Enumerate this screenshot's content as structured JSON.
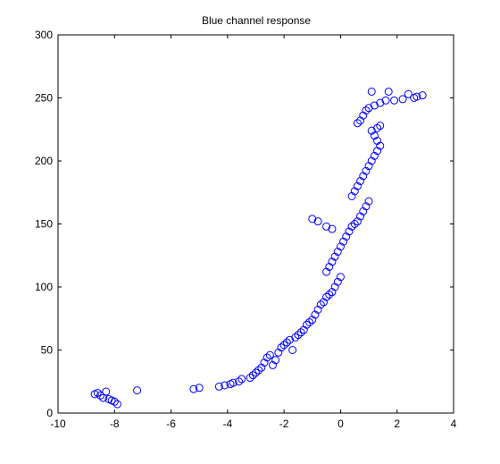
{
  "chart_data": {
    "type": "scatter",
    "title": "Blue channel response",
    "xlabel": "",
    "ylabel": "",
    "xlim": [
      -10,
      4
    ],
    "ylim": [
      0,
      300
    ],
    "x_ticks": [
      "-10",
      "-8",
      "-6",
      "-4",
      "-2",
      "0",
      "2",
      "4"
    ],
    "y_ticks": [
      "0",
      "50",
      "100",
      "150",
      "200",
      "250",
      "300"
    ],
    "grid": false,
    "legend": "none",
    "marker": "circle-open",
    "color": "#0000ff",
    "series": [
      {
        "points": [
          [
            -8.7,
            15
          ],
          [
            -8.6,
            16
          ],
          [
            -8.5,
            14
          ],
          [
            -8.4,
            12
          ],
          [
            -8.3,
            17
          ],
          [
            -8.2,
            11
          ],
          [
            -8.1,
            10
          ],
          [
            -8.0,
            9
          ],
          [
            -7.9,
            7
          ],
          [
            -7.2,
            18
          ],
          [
            -5.2,
            19
          ],
          [
            -5.0,
            20
          ],
          [
            -4.3,
            21
          ],
          [
            -4.1,
            22
          ],
          [
            -3.9,
            23
          ],
          [
            -3.8,
            24
          ],
          [
            -3.6,
            25
          ],
          [
            -3.5,
            27
          ],
          [
            -3.2,
            28
          ],
          [
            -3.1,
            30
          ],
          [
            -3.0,
            32
          ],
          [
            -2.9,
            34
          ],
          [
            -2.8,
            36
          ],
          [
            -2.7,
            40
          ],
          [
            -2.6,
            44
          ],
          [
            -2.5,
            46
          ],
          [
            -2.4,
            38
          ],
          [
            -2.3,
            42
          ],
          [
            -2.2,
            48
          ],
          [
            -2.1,
            52
          ],
          [
            -2.0,
            54
          ],
          [
            -1.9,
            56
          ],
          [
            -1.8,
            58
          ],
          [
            -1.7,
            50
          ],
          [
            -1.6,
            60
          ],
          [
            -1.5,
            62
          ],
          [
            -1.4,
            64
          ],
          [
            -1.3,
            66
          ],
          [
            -1.2,
            70
          ],
          [
            -1.1,
            72
          ],
          [
            -1.0,
            74
          ],
          [
            -0.9,
            78
          ],
          [
            -0.8,
            82
          ],
          [
            -0.7,
            86
          ],
          [
            -0.6,
            88
          ],
          [
            -0.5,
            92
          ],
          [
            -0.4,
            94
          ],
          [
            -0.3,
            96
          ],
          [
            -0.2,
            100
          ],
          [
            -0.1,
            104
          ],
          [
            0.0,
            108
          ],
          [
            -0.5,
            112
          ],
          [
            -0.4,
            116
          ],
          [
            -0.3,
            120
          ],
          [
            -0.2,
            124
          ],
          [
            -0.1,
            128
          ],
          [
            0.0,
            132
          ],
          [
            0.1,
            136
          ],
          [
            0.2,
            140
          ],
          [
            0.3,
            144
          ],
          [
            0.4,
            148
          ],
          [
            0.5,
            150
          ],
          [
            0.6,
            152
          ],
          [
            0.7,
            156
          ],
          [
            0.8,
            160
          ],
          [
            0.9,
            164
          ],
          [
            1.0,
            168
          ],
          [
            0.4,
            172
          ],
          [
            0.5,
            176
          ],
          [
            0.6,
            180
          ],
          [
            0.7,
            184
          ],
          [
            0.8,
            188
          ],
          [
            0.9,
            192
          ],
          [
            1.0,
            196
          ],
          [
            1.1,
            200
          ],
          [
            1.2,
            204
          ],
          [
            1.3,
            208
          ],
          [
            1.4,
            212
          ],
          [
            1.3,
            216
          ],
          [
            1.2,
            220
          ],
          [
            1.1,
            224
          ],
          [
            1.3,
            226
          ],
          [
            1.4,
            228
          ],
          [
            0.6,
            230
          ],
          [
            0.7,
            232
          ],
          [
            0.8,
            236
          ],
          [
            0.9,
            240
          ],
          [
            1.0,
            242
          ],
          [
            1.2,
            244
          ],
          [
            1.4,
            246
          ],
          [
            1.6,
            248
          ],
          [
            1.9,
            248
          ],
          [
            2.2,
            249
          ],
          [
            2.6,
            250
          ],
          [
            2.9,
            252
          ],
          [
            2.7,
            251
          ],
          [
            2.4,
            253
          ],
          [
            1.7,
            255
          ],
          [
            1.1,
            255
          ],
          [
            -0.5,
            148
          ],
          [
            -0.8,
            152
          ],
          [
            -1.0,
            154
          ],
          [
            -0.3,
            146
          ]
        ]
      }
    ]
  }
}
